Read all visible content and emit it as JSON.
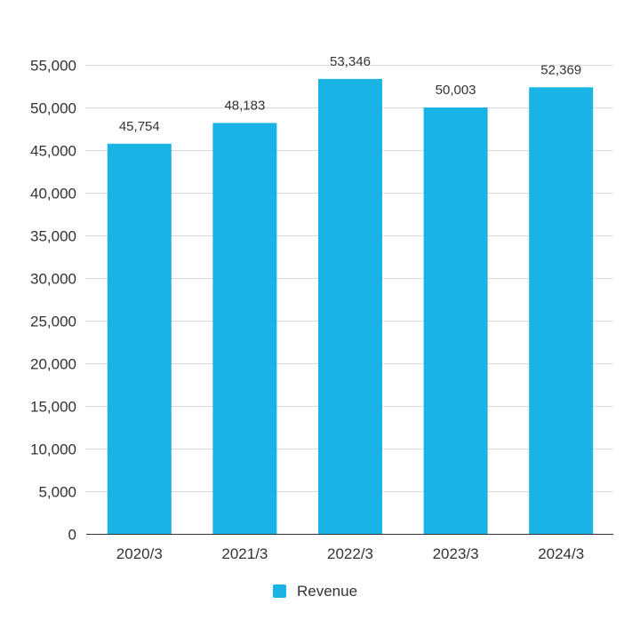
{
  "chart_data": {
    "type": "bar",
    "title": "",
    "xlabel": "",
    "ylabel": "",
    "categories": [
      "2020/3",
      "2021/3",
      "2022/3",
      "2023/3",
      "2024/3"
    ],
    "series": [
      {
        "name": "Revenue",
        "values": [
          45754,
          48183,
          53346,
          50003,
          52369
        ],
        "color": "#1ab3e6"
      }
    ],
    "data_labels": [
      "45,754",
      "48,183",
      "53,346",
      "50,003",
      "52,369"
    ],
    "ylim": [
      0,
      55000
    ],
    "yticks": [
      0,
      5000,
      10000,
      15000,
      20000,
      25000,
      30000,
      35000,
      40000,
      45000,
      50000,
      55000
    ],
    "ytick_labels": [
      "0",
      "5,000",
      "10,000",
      "15,000",
      "20,000",
      "25,000",
      "30,000",
      "35,000",
      "40,000",
      "45,000",
      "50,000",
      "55,000"
    ],
    "grid": true,
    "legend": {
      "position": "bottom",
      "entries": [
        "Revenue"
      ]
    }
  }
}
